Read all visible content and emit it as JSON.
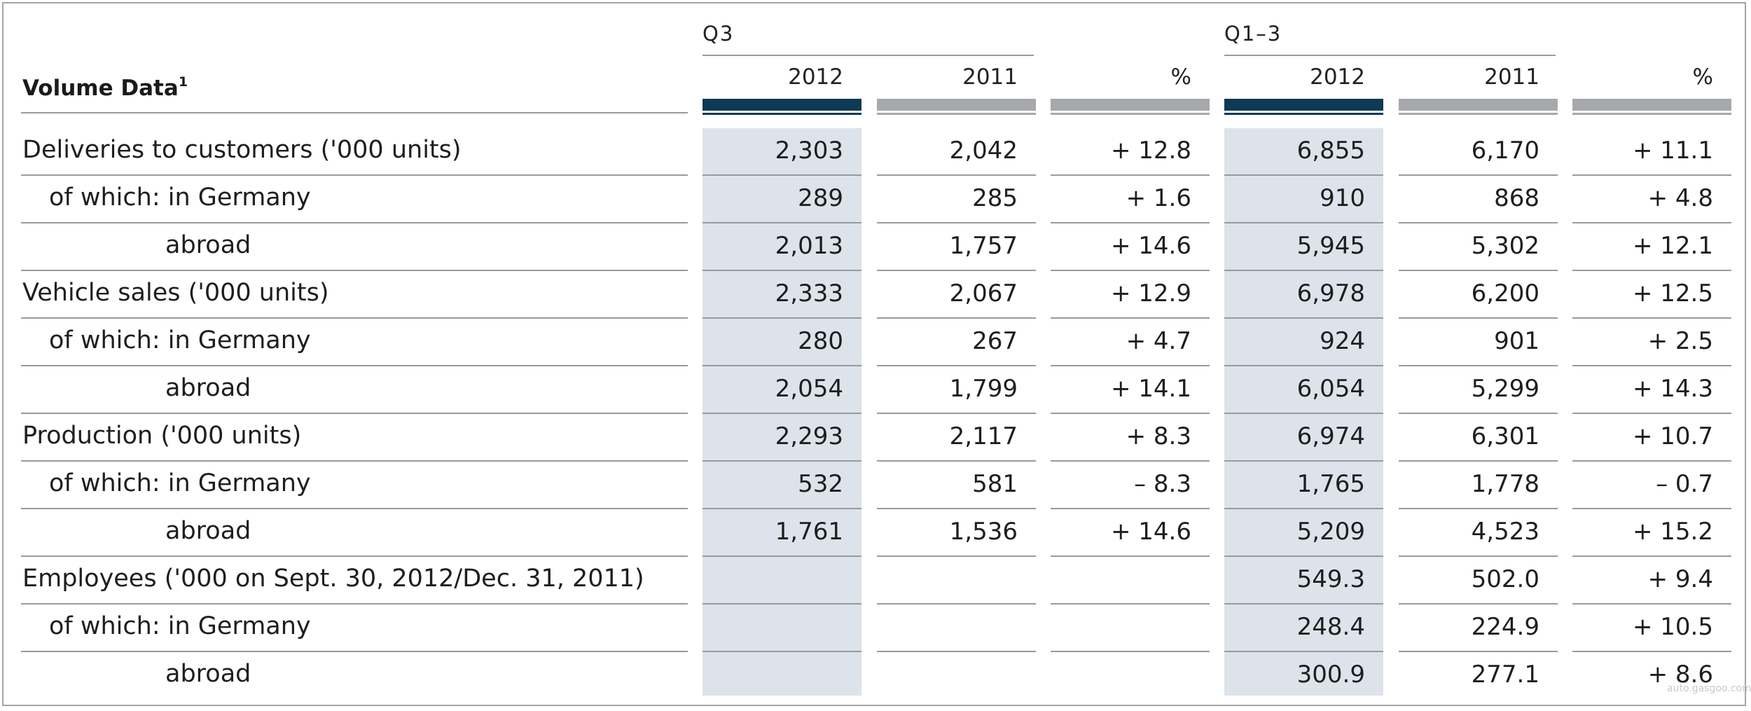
{
  "table": {
    "title": "Volume Data",
    "title_sup": "1",
    "groups": [
      {
        "label": "Q3",
        "years": [
          "2012",
          "2011",
          "%"
        ]
      },
      {
        "label": "Q1–3",
        "years": [
          "2012",
          "2011",
          "%"
        ]
      }
    ],
    "rows": [
      {
        "label": "Deliveries to customers ('000 units)",
        "indent": 0,
        "values": [
          "2,303",
          "2,042",
          "+ 12.8",
          "6,855",
          "6,170",
          "+ 11.1"
        ]
      },
      {
        "label": "of which: in Germany",
        "indent": 1,
        "values": [
          "289",
          "285",
          "+ 1.6",
          "910",
          "868",
          "+ 4.8"
        ]
      },
      {
        "label": "abroad",
        "indent": 2,
        "values": [
          "2,013",
          "1,757",
          "+ 14.6",
          "5,945",
          "5,302",
          "+ 12.1"
        ]
      },
      {
        "label": "Vehicle sales ('000 units)",
        "indent": 0,
        "values": [
          "2,333",
          "2,067",
          "+ 12.9",
          "6,978",
          "6,200",
          "+ 12.5"
        ]
      },
      {
        "label": "of which: in Germany",
        "indent": 1,
        "values": [
          "280",
          "267",
          "+ 4.7",
          "924",
          "901",
          "+ 2.5"
        ]
      },
      {
        "label": "abroad",
        "indent": 2,
        "values": [
          "2,054",
          "1,799",
          "+ 14.1",
          "6,054",
          "5,299",
          "+ 14.3"
        ]
      },
      {
        "label": "Production ('000 units)",
        "indent": 0,
        "values": [
          "2,293",
          "2,117",
          "+ 8.3",
          "6,974",
          "6,301",
          "+ 10.7"
        ]
      },
      {
        "label": "of which: in Germany",
        "indent": 1,
        "values": [
          "532",
          "581",
          "– 8.3",
          "1,765",
          "1,778",
          "– 0.7"
        ]
      },
      {
        "label": "abroad",
        "indent": 2,
        "values": [
          "1,761",
          "1,536",
          "+ 14.6",
          "5,209",
          "4,523",
          "+ 15.2"
        ]
      },
      {
        "label": "Employees ('000 on Sept. 30, 2012/Dec. 31, 2011)",
        "indent": 0,
        "values": [
          "",
          "",
          "",
          "549.3",
          "502.0",
          "+ 9.4"
        ]
      },
      {
        "label": "of which: in Germany",
        "indent": 1,
        "values": [
          "",
          "",
          "",
          "248.4",
          "224.9",
          "+ 10.5"
        ]
      },
      {
        "label": "abroad",
        "indent": 2,
        "values": [
          "",
          "",
          "",
          "300.9",
          "277.1",
          "+ 8.6"
        ]
      }
    ]
  },
  "watermark": "auto.gasgoo.com",
  "colors": {
    "highlight_column": "#dde3ea",
    "bar_current_year": "#0d3a55",
    "bar_other": "#a6a8ab",
    "rule": "#9a9a9a"
  }
}
